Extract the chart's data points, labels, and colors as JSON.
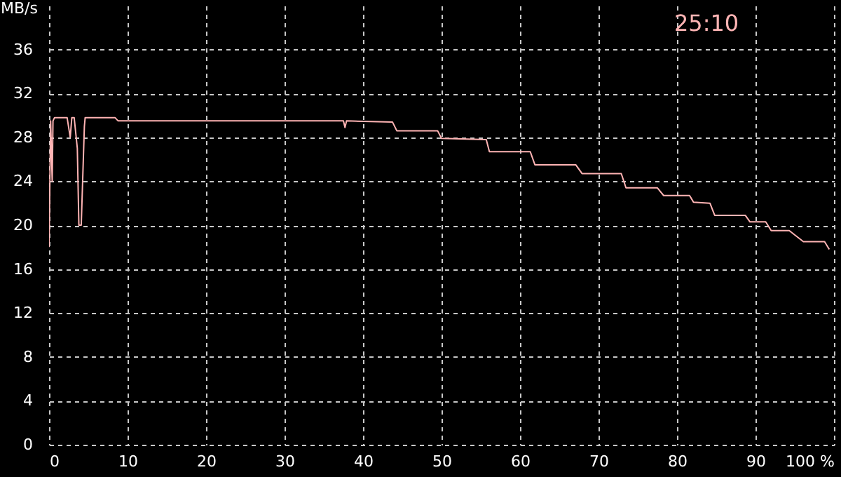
{
  "chart_data": {
    "type": "line",
    "ylabel": "MB/s",
    "annotations": [
      "25:10"
    ],
    "x": [
      0,
      0.2,
      0.4,
      0.5,
      0.7,
      2.3,
      2.7,
      2.9,
      3.2,
      3.6,
      3.8,
      4.1,
      4.5,
      4.6,
      8.4,
      8.8,
      37.5,
      37.7,
      37.9,
      43.75,
      44.3,
      49.5,
      50.0,
      55.7,
      56.1,
      61.3,
      61.9,
      67.1,
      67.9,
      72.9,
      73.5,
      77.5,
      78.3,
      81.6,
      82.1,
      84.2,
      84.8,
      88.7,
      89.3,
      91.3,
      92.0,
      94.3,
      96.1,
      98.8,
      99.4
    ],
    "series": [
      {
        "color": "#ffb4b4",
        "values": [
          18,
          29.5,
          24,
          29.5,
          29.8,
          29.8,
          28,
          29.8,
          29.8,
          27,
          20,
          20,
          29,
          29.8,
          29.8,
          29.5,
          29.5,
          28.9,
          29.5,
          29.4,
          28.6,
          28.6,
          27.9,
          27.8,
          26.7,
          26.7,
          25.5,
          25.5,
          24.7,
          24.7,
          23.4,
          23.4,
          22.7,
          22.7,
          22.1,
          22.0,
          20.9,
          20.9,
          20.3,
          20.3,
          19.5,
          19.5,
          18.5,
          18.5,
          17.8
        ]
      }
    ],
    "xlim": [
      0,
      100
    ],
    "xticks": [
      0,
      10,
      20,
      30,
      40,
      50,
      60,
      70,
      80,
      90,
      {
        "value": 100,
        "label": "100 %"
      }
    ],
    "ylim": [
      0,
      40
    ],
    "yticks": [
      0,
      4,
      8,
      12,
      16,
      20,
      24,
      28,
      32,
      36
    ],
    "grid": true,
    "marker": "none",
    "line_style": "solid"
  }
}
